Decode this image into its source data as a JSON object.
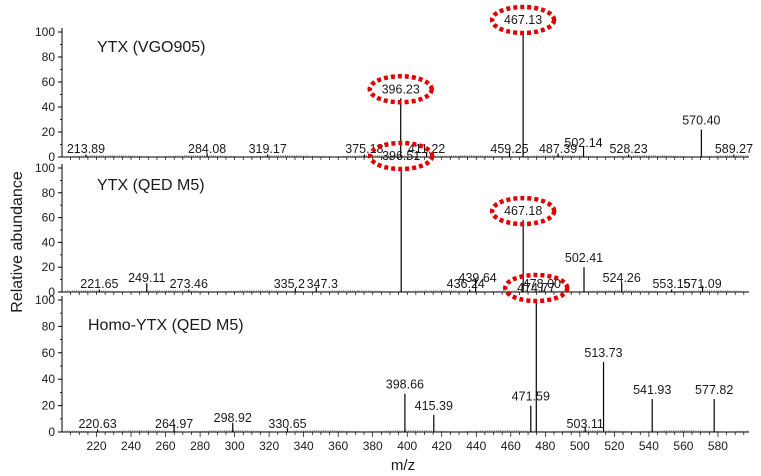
{
  "figure": {
    "xlabel": "m/z",
    "ylabel": "Relative abundance"
  },
  "chart_data": [
    {
      "type": "bar",
      "title": "YTX (VGO905)",
      "xlabel": "m/z",
      "ylabel": "Relative abundance",
      "xlim": [
        200,
        598
      ],
      "ylim": [
        0,
        100
      ],
      "yticks": [
        0,
        20,
        40,
        60,
        80,
        100
      ],
      "grid": false,
      "highlight_color": "#e00000",
      "peaks": [
        {
          "mz": 213.89,
          "abundance": 2,
          "label": "213.89"
        },
        {
          "mz": 284.08,
          "abundance": 3,
          "label": "284.08"
        },
        {
          "mz": 319.17,
          "abundance": 2,
          "label": "319.17"
        },
        {
          "mz": 375.18,
          "abundance": 2,
          "label": "375.18"
        },
        {
          "mz": 396.23,
          "abundance": 47,
          "label": "396.23",
          "circled": true
        },
        {
          "mz": 411.22,
          "abundance": 4,
          "label": "411.22"
        },
        {
          "mz": 459.25,
          "abundance": 4,
          "label": "459.25"
        },
        {
          "mz": 467.13,
          "abundance": 100,
          "label": "467.13",
          "circled": true
        },
        {
          "mz": 487.39,
          "abundance": 3,
          "label": "487.39"
        },
        {
          "mz": 502.14,
          "abundance": 9,
          "label": "502.14"
        },
        {
          "mz": 528.23,
          "abundance": 2,
          "label": "528.23"
        },
        {
          "mz": 570.4,
          "abundance": 22,
          "label": "570.40"
        },
        {
          "mz": 589.27,
          "abundance": 2,
          "label": "589.27"
        }
      ]
    },
    {
      "type": "bar",
      "title": "YTX (QED M5)",
      "xlabel": "m/z",
      "ylabel": "Relative abundance",
      "xlim": [
        200,
        598
      ],
      "ylim": [
        0,
        100
      ],
      "yticks": [
        0,
        20,
        40,
        60,
        80,
        100
      ],
      "grid": false,
      "highlight_color": "#e00000",
      "peaks": [
        {
          "mz": 221.65,
          "abundance": 2,
          "label": "221.65"
        },
        {
          "mz": 249.11,
          "abundance": 7,
          "label": "249.11"
        },
        {
          "mz": 273.46,
          "abundance": 2,
          "label": "273.46"
        },
        {
          "mz": 335.2,
          "abundance": 3,
          "label": "335.2"
        },
        {
          "mz": 347.3,
          "abundance": 4,
          "label": "347.3"
        },
        {
          "mz": 396.51,
          "abundance": 100,
          "label": "396.51",
          "circled": true
        },
        {
          "mz": 436.24,
          "abundance": 2,
          "label": "436.24"
        },
        {
          "mz": 439.64,
          "abundance": 10,
          "label": "439.64"
        },
        {
          "mz": 467.18,
          "abundance": 58,
          "label": "467.18",
          "circled": true
        },
        {
          "mz": 478.0,
          "abundance": 5,
          "label": "478.00"
        },
        {
          "mz": 502.41,
          "abundance": 20,
          "label": "502.41"
        },
        {
          "mz": 524.26,
          "abundance": 8,
          "label": "524.26"
        },
        {
          "mz": 553.15,
          "abundance": 2,
          "label": "553.15"
        },
        {
          "mz": 571.09,
          "abundance": 5,
          "label": "571.09"
        }
      ]
    },
    {
      "type": "bar",
      "title": "Homo-YTX (QED M5)",
      "xlabel": "m/z",
      "ylabel": "Relative abundance",
      "xlim": [
        200,
        598
      ],
      "ylim": [
        0,
        100
      ],
      "yticks": [
        0,
        20,
        40,
        60,
        80,
        100
      ],
      "xticks": [
        220,
        240,
        260,
        280,
        300,
        320,
        340,
        360,
        380,
        400,
        420,
        440,
        460,
        480,
        500,
        520,
        540,
        560,
        580
      ],
      "grid": false,
      "highlight_color": "#e00000",
      "peaks": [
        {
          "mz": 220.63,
          "abundance": 2,
          "label": "220.63"
        },
        {
          "mz": 264.97,
          "abundance": 6,
          "label": "264.97"
        },
        {
          "mz": 298.92,
          "abundance": 7,
          "label": "298.92"
        },
        {
          "mz": 330.65,
          "abundance": 3,
          "label": "330.65"
        },
        {
          "mz": 398.66,
          "abundance": 29,
          "label": "398.66"
        },
        {
          "mz": 415.39,
          "abundance": 13,
          "label": "415.39"
        },
        {
          "mz": 471.59,
          "abundance": 20,
          "label": "471.59"
        },
        {
          "mz": 474.77,
          "abundance": 100,
          "label": "474.77",
          "circled": true
        },
        {
          "mz": 503.11,
          "abundance": 4,
          "label": "503.11"
        },
        {
          "mz": 513.73,
          "abundance": 53,
          "label": "513.73"
        },
        {
          "mz": 541.93,
          "abundance": 25,
          "label": "541.93"
        },
        {
          "mz": 577.82,
          "abundance": 25,
          "label": "577.82"
        }
      ]
    }
  ]
}
